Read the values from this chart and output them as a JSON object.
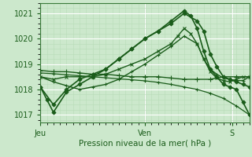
{
  "bg_color": "#cce8cc",
  "plot_bg_color": "#cce8cc",
  "grid_color_major": "#ffffff",
  "grid_color_minor": "#b8ddb8",
  "line_color": "#1a5c1a",
  "marker_color": "#1a5c1a",
  "ylim": [
    1016.7,
    1021.4
  ],
  "yticks": [
    1017,
    1018,
    1019,
    1020,
    1021
  ],
  "xlabel": "Pression niveau de la mer( hPa )",
  "xlabel_color": "#1a5c1a",
  "xtick_labels": [
    "Jeu",
    "Ven",
    "S"
  ],
  "xtick_positions": [
    0,
    48,
    88
  ],
  "series": [
    {
      "x": [
        0,
        6,
        12,
        18,
        24,
        30,
        36,
        42,
        48,
        54,
        60,
        66,
        72,
        75,
        78,
        81,
        84,
        87,
        90,
        93,
        96
      ],
      "y": [
        1018.1,
        1017.4,
        1018.0,
        1018.4,
        1018.6,
        1018.8,
        1019.2,
        1019.6,
        1020.0,
        1020.3,
        1020.6,
        1021.0,
        1020.7,
        1020.3,
        1019.4,
        1018.9,
        1018.5,
        1018.4,
        1018.3,
        1018.2,
        1018.1
      ],
      "marker": "D",
      "markersize": 2.5,
      "linewidth": 1.2,
      "filled": true
    },
    {
      "x": [
        0,
        3,
        6,
        12,
        18,
        24,
        30,
        36,
        42,
        48,
        54,
        60,
        66,
        69,
        72,
        75,
        78,
        81,
        84,
        87,
        90,
        93,
        96
      ],
      "y": [
        1018.1,
        1017.6,
        1017.1,
        1017.9,
        1018.2,
        1018.5,
        1018.8,
        1019.2,
        1019.6,
        1020.0,
        1020.3,
        1020.7,
        1021.1,
        1020.9,
        1020.4,
        1019.5,
        1018.8,
        1018.5,
        1018.2,
        1018.1,
        1018.0,
        1017.5,
        1017.0
      ],
      "marker": "D",
      "markersize": 2.5,
      "linewidth": 1.2,
      "filled": true
    },
    {
      "x": [
        0,
        6,
        12,
        18,
        24,
        30,
        36,
        42,
        48,
        54,
        60,
        66,
        72,
        78,
        84,
        90,
        96
      ],
      "y": [
        1018.75,
        1018.7,
        1018.7,
        1018.65,
        1018.6,
        1018.6,
        1018.55,
        1018.5,
        1018.5,
        1018.5,
        1018.45,
        1018.4,
        1018.4,
        1018.4,
        1018.5,
        1018.5,
        1018.5
      ],
      "marker": "+",
      "markersize": 4,
      "linewidth": 1.0,
      "filled": false
    },
    {
      "x": [
        0,
        6,
        12,
        18,
        24,
        30,
        36,
        42,
        48,
        54,
        60,
        66,
        72,
        78,
        84,
        90,
        96
      ],
      "y": [
        1018.65,
        1018.62,
        1018.58,
        1018.54,
        1018.5,
        1018.46,
        1018.42,
        1018.38,
        1018.34,
        1018.28,
        1018.2,
        1018.1,
        1018.0,
        1017.85,
        1017.65,
        1017.35,
        1017.0
      ],
      "marker": "+",
      "markersize": 3,
      "linewidth": 0.9,
      "filled": false
    },
    {
      "x": [
        0,
        6,
        12,
        18,
        24,
        30,
        36,
        42,
        48,
        54,
        60,
        63,
        66,
        69,
        72,
        75,
        78,
        81,
        84,
        87,
        90,
        93,
        96
      ],
      "y": [
        1018.5,
        1018.4,
        1018.5,
        1018.5,
        1018.5,
        1018.6,
        1018.8,
        1019.0,
        1019.2,
        1019.5,
        1019.8,
        1020.1,
        1020.4,
        1020.2,
        1019.8,
        1019.2,
        1018.7,
        1018.45,
        1018.35,
        1018.3,
        1018.4,
        1018.5,
        1018.5
      ],
      "marker": "x",
      "markersize": 3,
      "linewidth": 1.0,
      "filled": false
    },
    {
      "x": [
        0,
        6,
        12,
        18,
        24,
        30,
        36,
        42,
        48,
        54,
        60,
        66,
        72,
        75,
        78,
        81,
        84,
        87,
        90,
        93,
        96
      ],
      "y": [
        1018.5,
        1018.3,
        1018.15,
        1018.0,
        1018.1,
        1018.2,
        1018.4,
        1018.7,
        1019.0,
        1019.35,
        1019.7,
        1020.1,
        1019.8,
        1019.2,
        1018.8,
        1018.6,
        1018.45,
        1018.4,
        1018.35,
        1018.35,
        1018.5
      ],
      "marker": "+",
      "markersize": 3,
      "linewidth": 1.0,
      "filled": false
    }
  ]
}
